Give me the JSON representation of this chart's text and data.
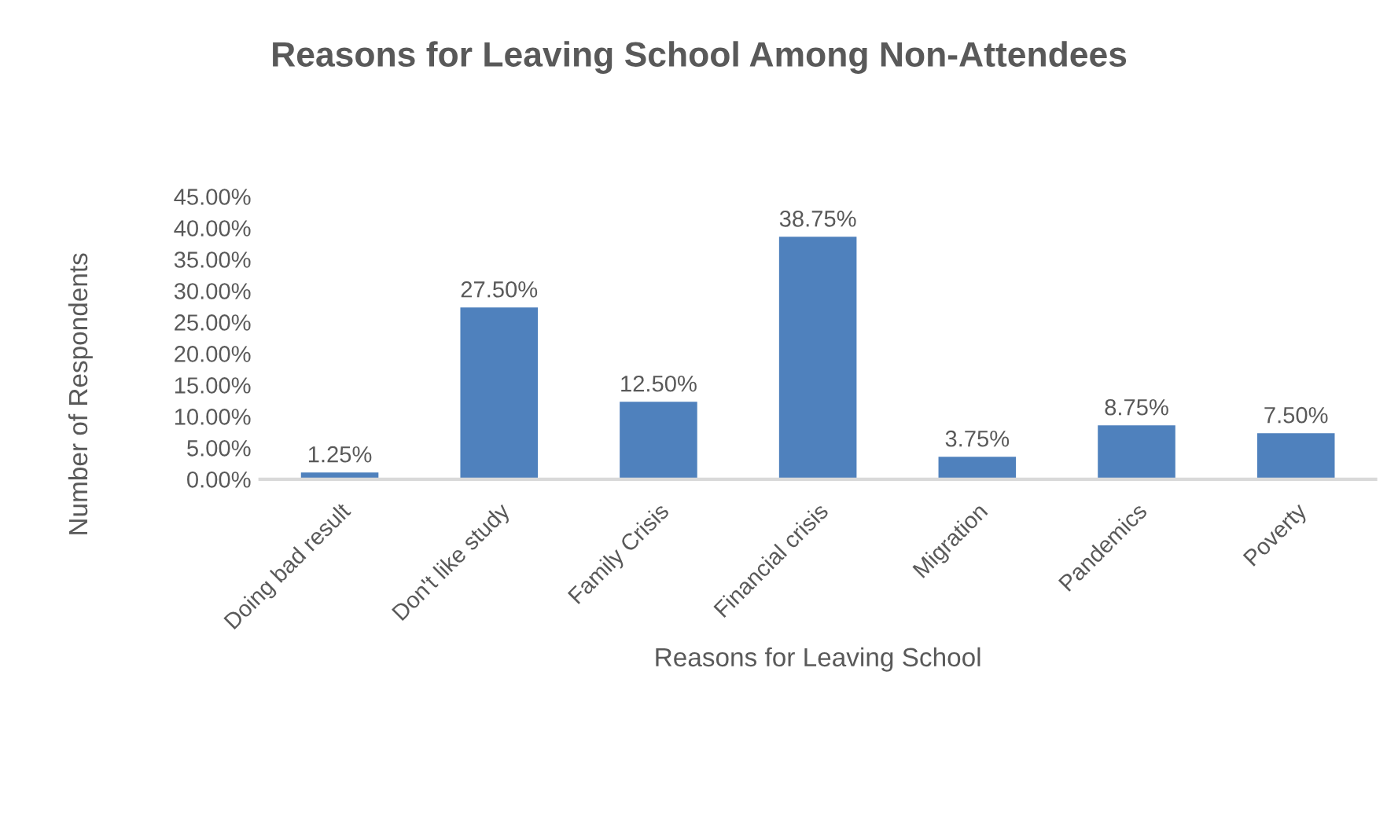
{
  "chart_data": {
    "type": "bar",
    "title": "Reasons for Leaving School Among Non-Attendees",
    "xlabel": "Reasons for Leaving School",
    "ylabel": "Number of Respondents",
    "categories": [
      "Doing bad result",
      "Don't like study",
      "Family Crisis",
      "Financial crisis",
      "Migration",
      "Pandemics",
      "Poverty"
    ],
    "values": [
      1.25,
      27.5,
      12.5,
      38.75,
      3.75,
      8.75,
      7.5
    ],
    "color": "#4f81bd",
    "value_labels": [
      "1.25%",
      "27.50%",
      "12.50%",
      "38.75%",
      "3.75%",
      "8.75%",
      "7.50%"
    ],
    "ylim": [
      0,
      45
    ],
    "yticks": [
      {
        "value": 0,
        "label": "0.00%"
      },
      {
        "value": 5,
        "label": "5.00%"
      },
      {
        "value": 10,
        "label": "10.00%"
      },
      {
        "value": 15,
        "label": "15.00%"
      },
      {
        "value": 20,
        "label": "20.00%"
      },
      {
        "value": 25,
        "label": "25.00%"
      },
      {
        "value": 30,
        "label": "30.00%"
      },
      {
        "value": 35,
        "label": "35.00%"
      },
      {
        "value": 40,
        "label": "40.00%"
      },
      {
        "value": 45,
        "label": "45.00%"
      }
    ]
  }
}
